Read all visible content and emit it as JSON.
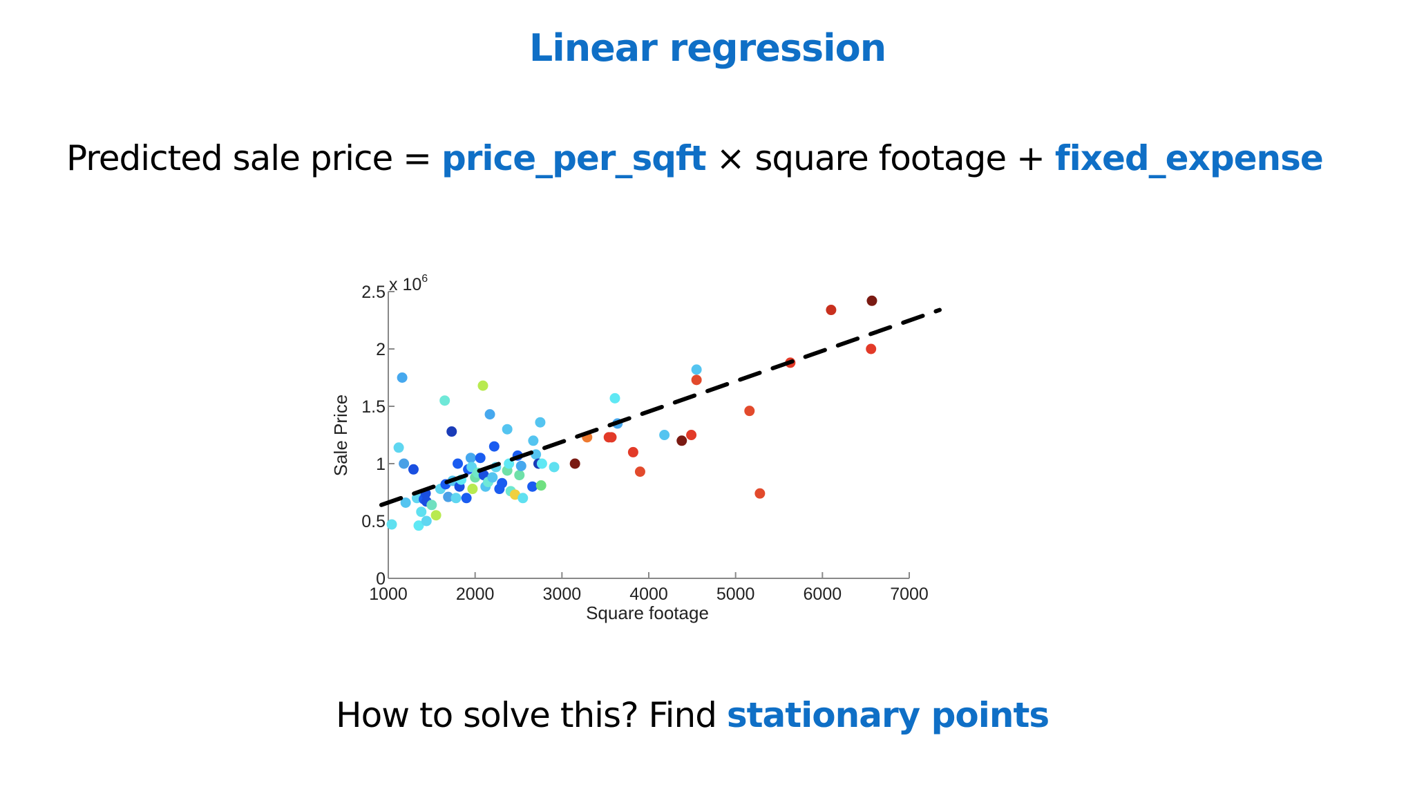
{
  "slide": {
    "title": "Linear regression",
    "formula": {
      "prefix": "Predicted sale price = ",
      "term1": "price_per_sqft",
      "middle": " × square footage + ",
      "term2": "fixed_expense"
    },
    "question": {
      "prefix": "How to solve this? Find ",
      "highlight": "stationary points"
    },
    "colors": {
      "accent": "#0f6fc6",
      "text": "#000000"
    }
  },
  "chart_data": {
    "type": "scatter",
    "title": "",
    "xlabel": "Square footage",
    "ylabel": "Sale Price",
    "y_multiplier_label": "x 10",
    "y_multiplier_exponent": "6",
    "xlim": [
      1000,
      7000
    ],
    "ylim": [
      0,
      2.5
    ],
    "xticks": [
      "1000",
      "2000",
      "3000",
      "4000",
      "5000",
      "6000",
      "7000"
    ],
    "yticks": [
      "0",
      "0.5",
      "1",
      "1.5",
      "2",
      "2.5"
    ],
    "grid": false,
    "legend": null,
    "regression_line": {
      "style": "dashed",
      "color": "#000000",
      "x": [
        920,
        7350
      ],
      "y": [
        0.64,
        2.34
      ]
    },
    "points": [
      {
        "x": 1040,
        "y": 0.47,
        "c": "#5fe0f0"
      },
      {
        "x": 1120,
        "y": 1.14,
        "c": "#5fd6f0"
      },
      {
        "x": 1160,
        "y": 1.75,
        "c": "#46a8ee"
      },
      {
        "x": 1180,
        "y": 1.0,
        "c": "#4aa0e6"
      },
      {
        "x": 1200,
        "y": 0.66,
        "c": "#54c4f0"
      },
      {
        "x": 1290,
        "y": 0.95,
        "c": "#1a4fe0"
      },
      {
        "x": 1330,
        "y": 0.7,
        "c": "#5fd6f0"
      },
      {
        "x": 1350,
        "y": 0.46,
        "c": "#5fe8f4"
      },
      {
        "x": 1380,
        "y": 0.58,
        "c": "#5fe0f0"
      },
      {
        "x": 1410,
        "y": 0.69,
        "c": "#1a5cf0"
      },
      {
        "x": 1430,
        "y": 0.74,
        "c": "#1a4fe0"
      },
      {
        "x": 1440,
        "y": 0.67,
        "c": "#1a4fe0"
      },
      {
        "x": 1440,
        "y": 0.5,
        "c": "#5fd6f0"
      },
      {
        "x": 1500,
        "y": 0.64,
        "c": "#6fe0c0"
      },
      {
        "x": 1550,
        "y": 0.55,
        "c": "#b8ea50"
      },
      {
        "x": 1600,
        "y": 0.78,
        "c": "#5fd6f0"
      },
      {
        "x": 1650,
        "y": 1.55,
        "c": "#6fe8d8"
      },
      {
        "x": 1660,
        "y": 0.82,
        "c": "#1a5cf0"
      },
      {
        "x": 1690,
        "y": 0.71,
        "c": "#4aa0e6"
      },
      {
        "x": 1730,
        "y": 1.28,
        "c": "#1a3cb8"
      },
      {
        "x": 1740,
        "y": 0.85,
        "c": "#54c4f0"
      },
      {
        "x": 1780,
        "y": 0.7,
        "c": "#5fd6f0"
      },
      {
        "x": 1800,
        "y": 1.0,
        "c": "#1a5cf0"
      },
      {
        "x": 1820,
        "y": 0.8,
        "c": "#1a4fe0"
      },
      {
        "x": 1840,
        "y": 0.86,
        "c": "#5fe8f4"
      },
      {
        "x": 1900,
        "y": 0.7,
        "c": "#1a5cf0"
      },
      {
        "x": 1920,
        "y": 0.95,
        "c": "#1a5cf0"
      },
      {
        "x": 1950,
        "y": 1.05,
        "c": "#46a8ee"
      },
      {
        "x": 1960,
        "y": 0.97,
        "c": "#5fd6f0"
      },
      {
        "x": 1970,
        "y": 0.78,
        "c": "#b8ea50"
      },
      {
        "x": 2000,
        "y": 0.88,
        "c": "#6fe0a8"
      },
      {
        "x": 2030,
        "y": 0.92,
        "c": "#6fe8c8"
      },
      {
        "x": 2060,
        "y": 1.05,
        "c": "#1a5cf0"
      },
      {
        "x": 2090,
        "y": 1.68,
        "c": "#b8ea50"
      },
      {
        "x": 2100,
        "y": 0.9,
        "c": "#1a4fe0"
      },
      {
        "x": 2120,
        "y": 0.8,
        "c": "#54c4f0"
      },
      {
        "x": 2150,
        "y": 0.84,
        "c": "#6fe8d8"
      },
      {
        "x": 2170,
        "y": 1.43,
        "c": "#46a8ee"
      },
      {
        "x": 2200,
        "y": 0.88,
        "c": "#54c4f0"
      },
      {
        "x": 2220,
        "y": 1.15,
        "c": "#1a5cf0"
      },
      {
        "x": 2240,
        "y": 0.97,
        "c": "#5fd6f0"
      },
      {
        "x": 2280,
        "y": 0.78,
        "c": "#1a5cf0"
      },
      {
        "x": 2310,
        "y": 0.83,
        "c": "#1a5cf0"
      },
      {
        "x": 2370,
        "y": 1.3,
        "c": "#54c4f0"
      },
      {
        "x": 2370,
        "y": 0.94,
        "c": "#6fe0a8"
      },
      {
        "x": 2390,
        "y": 1.0,
        "c": "#5fe8f4"
      },
      {
        "x": 2410,
        "y": 0.76,
        "c": "#6fe8d0"
      },
      {
        "x": 2460,
        "y": 0.73,
        "c": "#f0d040"
      },
      {
        "x": 2490,
        "y": 1.07,
        "c": "#1a5cf0"
      },
      {
        "x": 2510,
        "y": 0.9,
        "c": "#6fe0a8"
      },
      {
        "x": 2530,
        "y": 0.98,
        "c": "#46a8ee"
      },
      {
        "x": 2550,
        "y": 0.7,
        "c": "#5fe0f0"
      },
      {
        "x": 2660,
        "y": 0.8,
        "c": "#1a5cf0"
      },
      {
        "x": 2670,
        "y": 1.2,
        "c": "#54c4f0"
      },
      {
        "x": 2700,
        "y": 1.08,
        "c": "#54c4f0"
      },
      {
        "x": 2730,
        "y": 1.0,
        "c": "#1a3cb8"
      },
      {
        "x": 2750,
        "y": 1.36,
        "c": "#54c4f0"
      },
      {
        "x": 2760,
        "y": 0.81,
        "c": "#6fe080"
      },
      {
        "x": 2770,
        "y": 1.0,
        "c": "#5fe8f4"
      },
      {
        "x": 2910,
        "y": 0.97,
        "c": "#5fe0f0"
      },
      {
        "x": 3150,
        "y": 1.0,
        "c": "#7a1a12"
      },
      {
        "x": 3290,
        "y": 1.23,
        "c": "#ee7a30"
      },
      {
        "x": 3540,
        "y": 1.23,
        "c": "#e23a28"
      },
      {
        "x": 3570,
        "y": 1.23,
        "c": "#e23a28"
      },
      {
        "x": 3610,
        "y": 1.57,
        "c": "#5fe8f4"
      },
      {
        "x": 3640,
        "y": 1.35,
        "c": "#46a8ee"
      },
      {
        "x": 3820,
        "y": 1.1,
        "c": "#e23a28"
      },
      {
        "x": 3900,
        "y": 0.93,
        "c": "#e24a2c"
      },
      {
        "x": 4180,
        "y": 1.25,
        "c": "#54c4f0"
      },
      {
        "x": 4380,
        "y": 1.2,
        "c": "#7a1a12"
      },
      {
        "x": 4490,
        "y": 1.25,
        "c": "#e23a28"
      },
      {
        "x": 4550,
        "y": 1.82,
        "c": "#54c4f0"
      },
      {
        "x": 4550,
        "y": 1.73,
        "c": "#e24a2c"
      },
      {
        "x": 5160,
        "y": 1.46,
        "c": "#e24a2c"
      },
      {
        "x": 5280,
        "y": 0.74,
        "c": "#e24a2c"
      },
      {
        "x": 5630,
        "y": 1.88,
        "c": "#e23a28"
      },
      {
        "x": 6100,
        "y": 2.34,
        "c": "#c8301e"
      },
      {
        "x": 6560,
        "y": 2.0,
        "c": "#e23a28"
      },
      {
        "x": 6570,
        "y": 2.42,
        "c": "#7a1a12"
      }
    ]
  }
}
